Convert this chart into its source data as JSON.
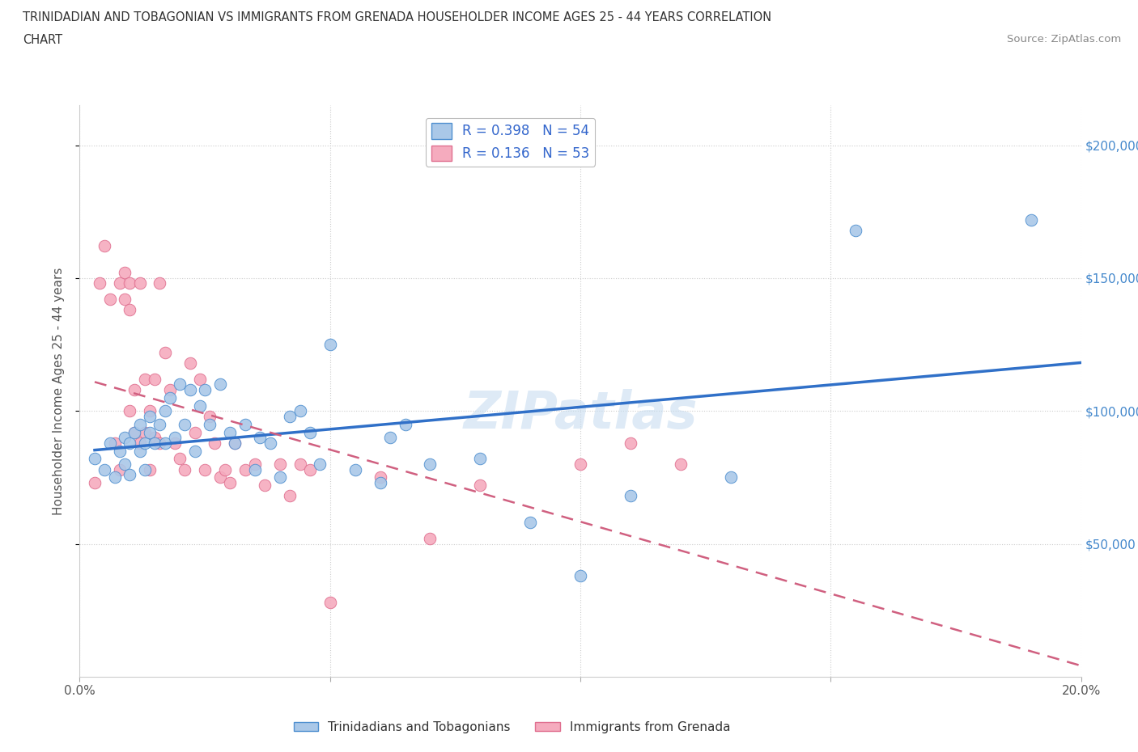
{
  "title_line1": "TRINIDADIAN AND TOBAGONIAN VS IMMIGRANTS FROM GRENADA HOUSEHOLDER INCOME AGES 25 - 44 YEARS CORRELATION",
  "title_line2": "CHART",
  "source": "Source: ZipAtlas.com",
  "ylabel": "Householder Income Ages 25 - 44 years",
  "xlim": [
    0,
    0.2
  ],
  "ylim": [
    0,
    215000
  ],
  "yticks": [
    50000,
    100000,
    150000,
    200000
  ],
  "ytick_labels": [
    "$50,000",
    "$100,000",
    "$150,000",
    "$200,000"
  ],
  "xticks": [
    0.0,
    0.05,
    0.1,
    0.15,
    0.2
  ],
  "xtick_labels": [
    "0.0%",
    "",
    "",
    "",
    "20.0%"
  ],
  "watermark": "ZIPatlas",
  "blue_R": 0.398,
  "blue_N": 54,
  "pink_R": 0.136,
  "pink_N": 53,
  "blue_color": "#aac8e8",
  "pink_color": "#f5abbe",
  "blue_edge_color": "#5090d0",
  "pink_edge_color": "#e07090",
  "blue_line_color": "#3070c8",
  "pink_line_color": "#d06080",
  "legend_label_blue": "Trinidadians and Tobagonians",
  "legend_label_pink": "Immigrants from Grenada",
  "blue_x": [
    0.003,
    0.005,
    0.006,
    0.007,
    0.008,
    0.009,
    0.009,
    0.01,
    0.01,
    0.011,
    0.012,
    0.012,
    0.013,
    0.013,
    0.014,
    0.014,
    0.015,
    0.016,
    0.017,
    0.017,
    0.018,
    0.019,
    0.02,
    0.021,
    0.022,
    0.023,
    0.024,
    0.025,
    0.026,
    0.028,
    0.03,
    0.031,
    0.033,
    0.035,
    0.036,
    0.038,
    0.04,
    0.042,
    0.044,
    0.046,
    0.048,
    0.05,
    0.055,
    0.06,
    0.062,
    0.065,
    0.07,
    0.08,
    0.09,
    0.1,
    0.11,
    0.13,
    0.155,
    0.19
  ],
  "blue_y": [
    82000,
    78000,
    88000,
    75000,
    85000,
    90000,
    80000,
    88000,
    76000,
    92000,
    85000,
    95000,
    88000,
    78000,
    92000,
    98000,
    88000,
    95000,
    100000,
    88000,
    105000,
    90000,
    110000,
    95000,
    108000,
    85000,
    102000,
    108000,
    95000,
    110000,
    92000,
    88000,
    95000,
    78000,
    90000,
    88000,
    75000,
    98000,
    100000,
    92000,
    80000,
    125000,
    78000,
    73000,
    90000,
    95000,
    80000,
    82000,
    58000,
    38000,
    68000,
    75000,
    168000,
    172000
  ],
  "pink_x": [
    0.003,
    0.004,
    0.005,
    0.006,
    0.007,
    0.008,
    0.008,
    0.009,
    0.009,
    0.01,
    0.01,
    0.01,
    0.011,
    0.011,
    0.012,
    0.012,
    0.013,
    0.013,
    0.014,
    0.014,
    0.015,
    0.015,
    0.016,
    0.016,
    0.017,
    0.018,
    0.019,
    0.02,
    0.021,
    0.022,
    0.023,
    0.024,
    0.025,
    0.026,
    0.027,
    0.028,
    0.029,
    0.03,
    0.031,
    0.033,
    0.035,
    0.037,
    0.04,
    0.042,
    0.044,
    0.046,
    0.05,
    0.06,
    0.07,
    0.08,
    0.1,
    0.11,
    0.12
  ],
  "pink_y": [
    73000,
    148000,
    162000,
    142000,
    88000,
    78000,
    148000,
    142000,
    152000,
    138000,
    100000,
    148000,
    108000,
    92000,
    148000,
    88000,
    112000,
    92000,
    100000,
    78000,
    112000,
    90000,
    88000,
    148000,
    122000,
    108000,
    88000,
    82000,
    78000,
    118000,
    92000,
    112000,
    78000,
    98000,
    88000,
    75000,
    78000,
    73000,
    88000,
    78000,
    80000,
    72000,
    80000,
    68000,
    80000,
    78000,
    28000,
    75000,
    52000,
    72000,
    80000,
    88000,
    80000
  ]
}
